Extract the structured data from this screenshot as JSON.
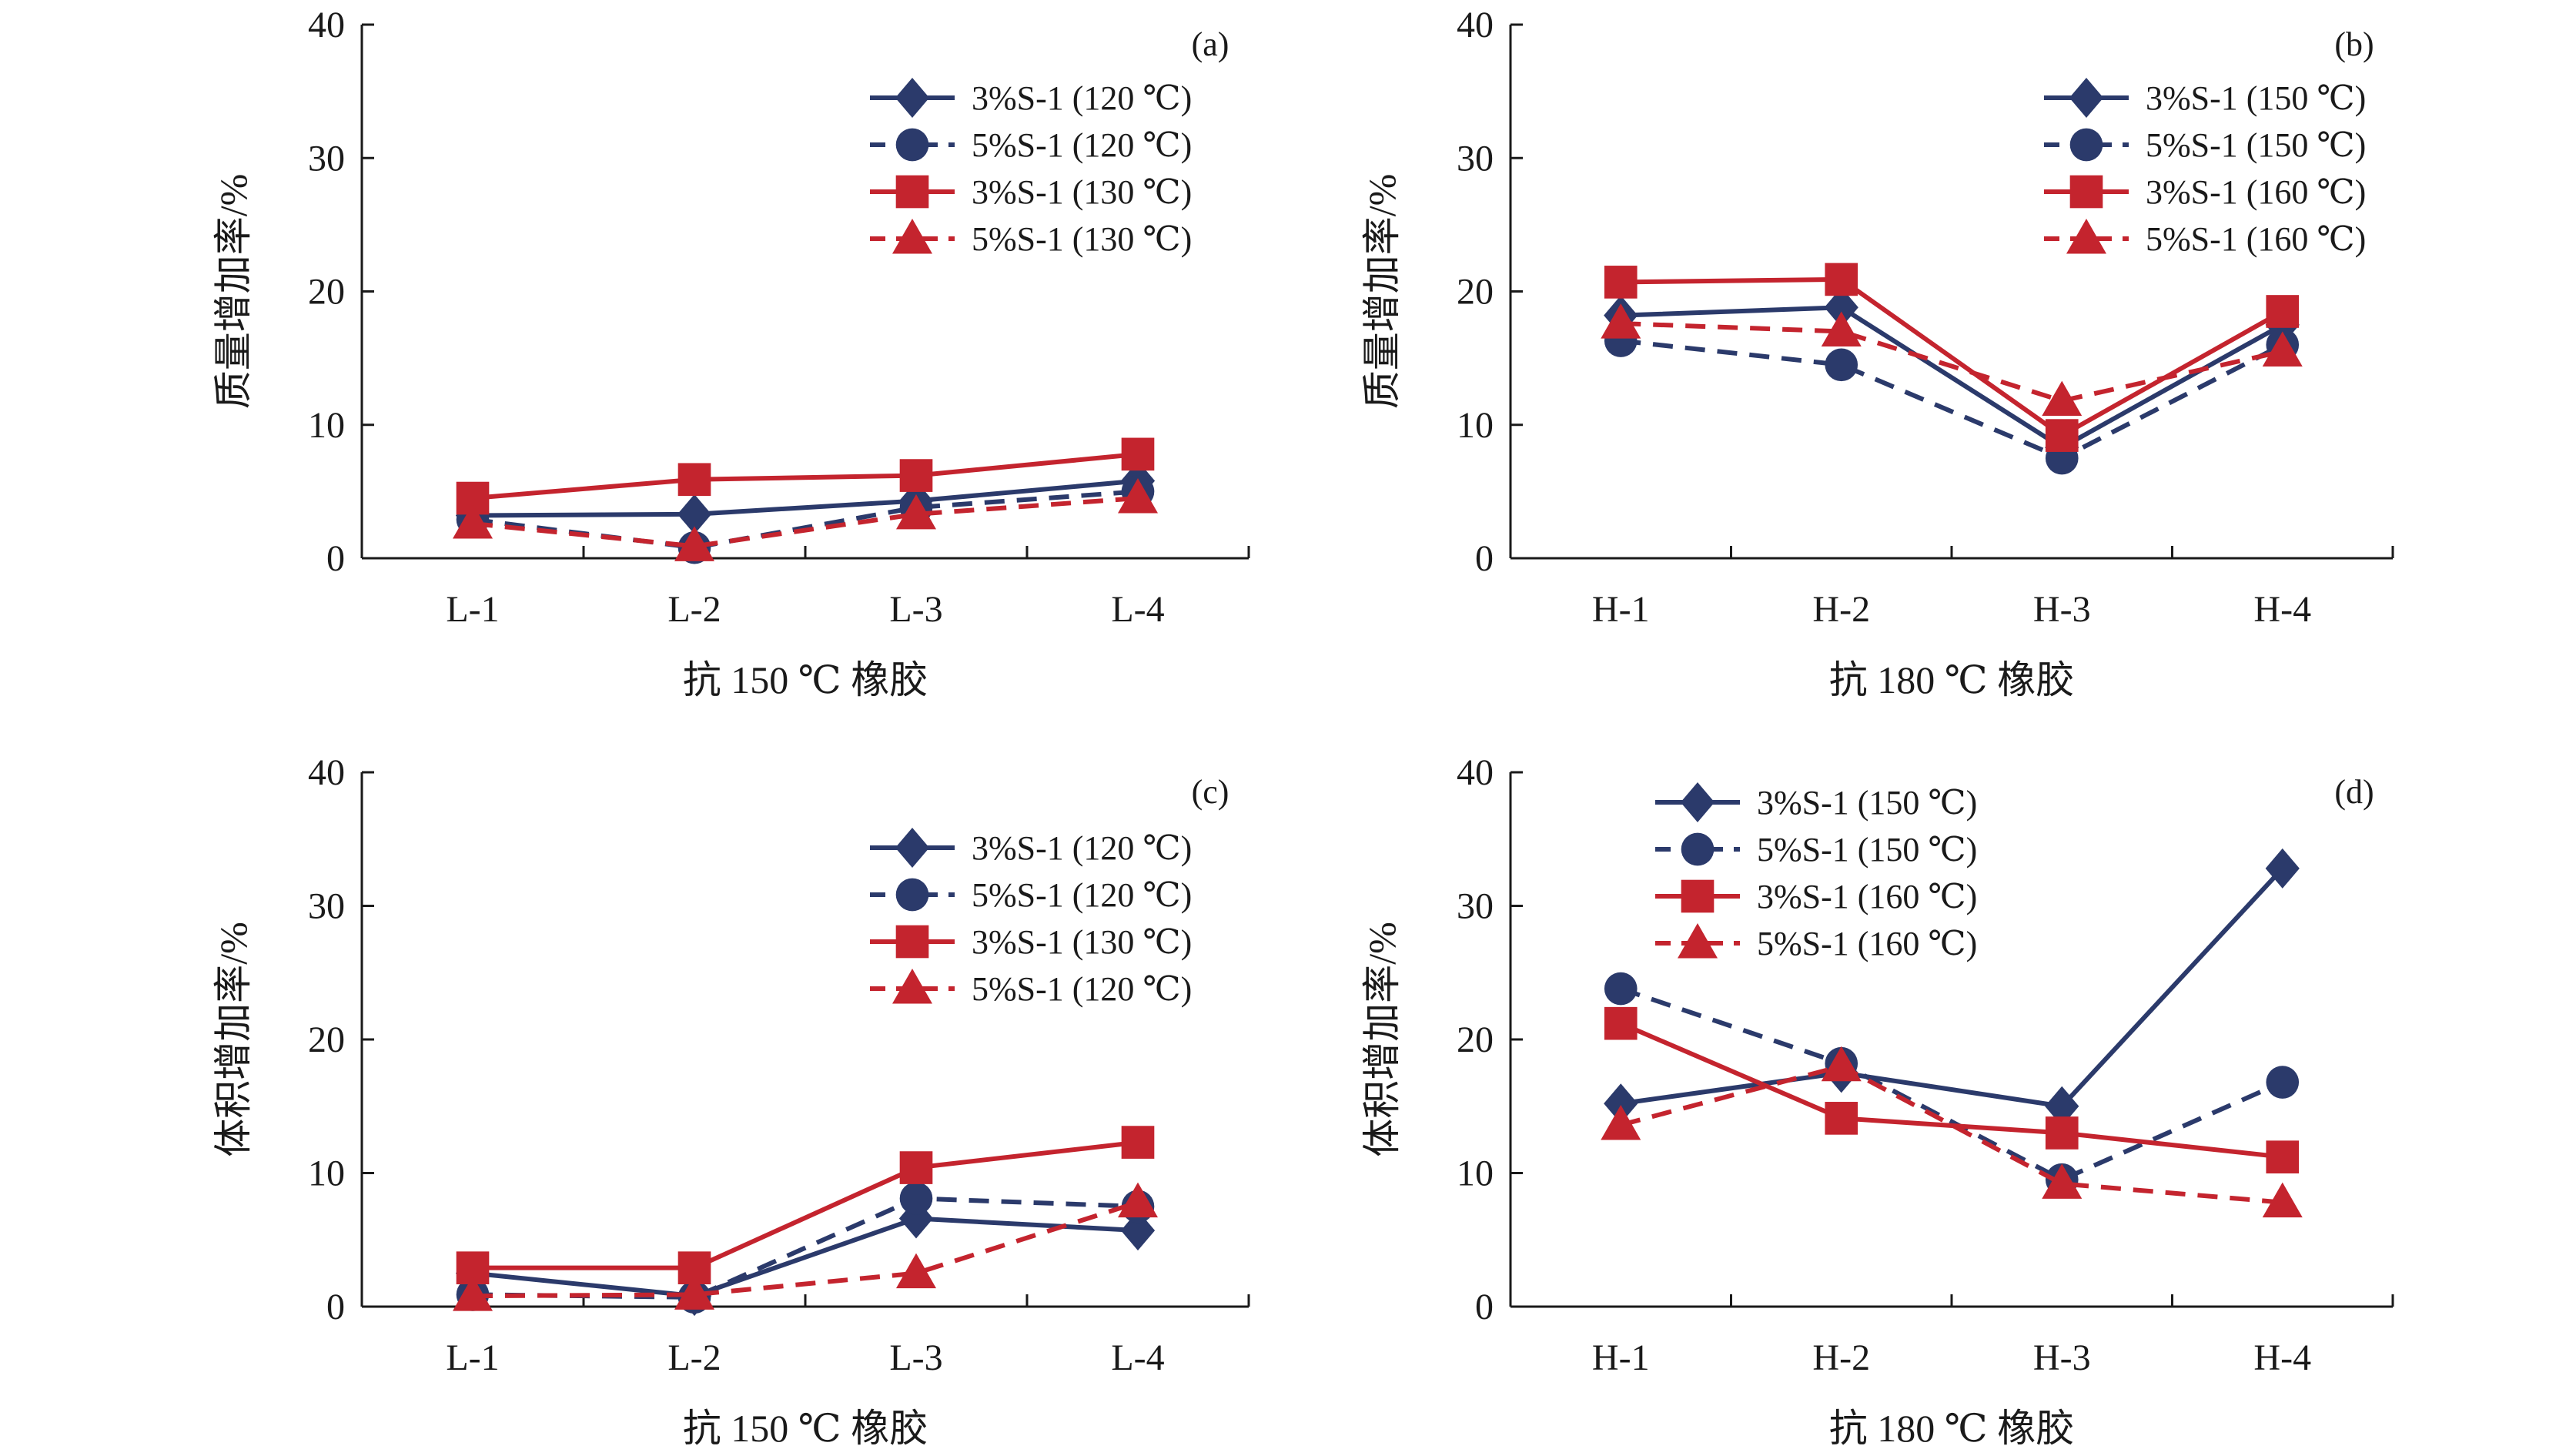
{
  "chart_data": [
    {
      "type": "line",
      "panel_label": "(a)",
      "categories": [
        "L-1",
        "L-2",
        "L-3",
        "L-4"
      ],
      "xlabel": "抗 150 ℃ 橡胶",
      "ylabel": "质量增加率/%",
      "ylim": [
        0,
        40
      ],
      "yticks": [
        "0",
        "10",
        "20",
        "30",
        "40"
      ],
      "legend_position": "top-right",
      "series": [
        {
          "name": "3%S-1 (120 ℃)",
          "color": "#2b3a6b",
          "dash": "solid",
          "marker": "diamond",
          "values": [
            3.2,
            3.3,
            4.3,
            5.8
          ]
        },
        {
          "name": "5%S-1 (120 ℃)",
          "color": "#2b3a6b",
          "dash": "dashed",
          "marker": "circle",
          "values": [
            2.9,
            0.8,
            3.8,
            5.0
          ]
        },
        {
          "name": "3%S-1 (130 ℃)",
          "color": "#c4242e",
          "dash": "solid",
          "marker": "square",
          "values": [
            4.5,
            5.9,
            6.2,
            7.8
          ]
        },
        {
          "name": "5%S-1 (130 ℃)",
          "color": "#c4242e",
          "dash": "dashed",
          "marker": "triangle",
          "values": [
            2.6,
            0.9,
            3.3,
            4.5
          ]
        }
      ]
    },
    {
      "type": "line",
      "panel_label": "(b)",
      "categories": [
        "H-1",
        "H-2",
        "H-3",
        "H-4"
      ],
      "xlabel": "抗 180 ℃ 橡胶",
      "ylabel": "质量增加率/%",
      "ylim": [
        0,
        40
      ],
      "yticks": [
        "0",
        "10",
        "20",
        "30",
        "40"
      ],
      "legend_position": "top-right",
      "series": [
        {
          "name": "3%S-1 (150 ℃)",
          "color": "#2b3a6b",
          "dash": "solid",
          "marker": "diamond",
          "values": [
            18.2,
            18.8,
            8.3,
            17.5
          ]
        },
        {
          "name": "5%S-1 (150 ℃)",
          "color": "#2b3a6b",
          "dash": "dashed",
          "marker": "circle",
          "values": [
            16.3,
            14.5,
            7.5,
            16.0
          ]
        },
        {
          "name": "3%S-1 (160 ℃)",
          "color": "#c4242e",
          "dash": "solid",
          "marker": "square",
          "values": [
            20.7,
            20.9,
            9.2,
            18.5
          ]
        },
        {
          "name": "5%S-1 (160 ℃)",
          "color": "#c4242e",
          "dash": "dashed",
          "marker": "triangle",
          "values": [
            17.6,
            17.0,
            11.8,
            15.5
          ]
        }
      ]
    },
    {
      "type": "line",
      "panel_label": "(c)",
      "categories": [
        "L-1",
        "L-2",
        "L-3",
        "L-4"
      ],
      "xlabel": "抗 150 ℃ 橡胶",
      "ylabel": "体积增加率/%",
      "ylim": [
        0,
        40
      ],
      "yticks": [
        "0",
        "10",
        "20",
        "30",
        "40"
      ],
      "legend_position": "top-right",
      "series": [
        {
          "name": "3%S-1 (120 ℃)",
          "color": "#2b3a6b",
          "dash": "solid",
          "marker": "diamond",
          "values": [
            2.5,
            0.8,
            6.6,
            5.7
          ]
        },
        {
          "name": "5%S-1 (120 ℃)",
          "color": "#2b3a6b",
          "dash": "dashed",
          "marker": "circle",
          "values": [
            0.9,
            0.7,
            8.1,
            7.5
          ]
        },
        {
          "name": "3%S-1 (130 ℃)",
          "color": "#c4242e",
          "dash": "solid",
          "marker": "square",
          "values": [
            2.9,
            2.9,
            10.4,
            12.3
          ]
        },
        {
          "name": "5%S-1 (120 ℃)",
          "color": "#c4242e",
          "dash": "dashed",
          "marker": "triangle",
          "values": [
            0.8,
            0.9,
            2.5,
            7.8
          ]
        }
      ]
    },
    {
      "type": "line",
      "panel_label": "(d)",
      "categories": [
        "H-1",
        "H-2",
        "H-3",
        "H-4"
      ],
      "xlabel": "抗 180 ℃ 橡胶",
      "ylabel": "体积增加率/%",
      "ylim": [
        0,
        40
      ],
      "yticks": [
        "0",
        "10",
        "20",
        "30",
        "40"
      ],
      "legend_position": "top-left",
      "series": [
        {
          "name": "3%S-1 (150 ℃)",
          "color": "#2b3a6b",
          "dash": "solid",
          "marker": "diamond",
          "values": [
            15.2,
            17.5,
            15.0,
            32.8
          ]
        },
        {
          "name": "5%S-1 (150 ℃)",
          "color": "#2b3a6b",
          "dash": "dashed",
          "marker": "circle",
          "values": [
            23.8,
            18.2,
            9.5,
            16.8
          ]
        },
        {
          "name": "3%S-1 (160 ℃)",
          "color": "#c4242e",
          "dash": "solid",
          "marker": "square",
          "values": [
            21.2,
            14.1,
            13.0,
            11.2
          ]
        },
        {
          "name": "5%S-1 (160 ℃)",
          "color": "#c4242e",
          "dash": "dashed",
          "marker": "triangle",
          "values": [
            13.6,
            18.0,
            9.2,
            7.8
          ]
        }
      ]
    }
  ]
}
